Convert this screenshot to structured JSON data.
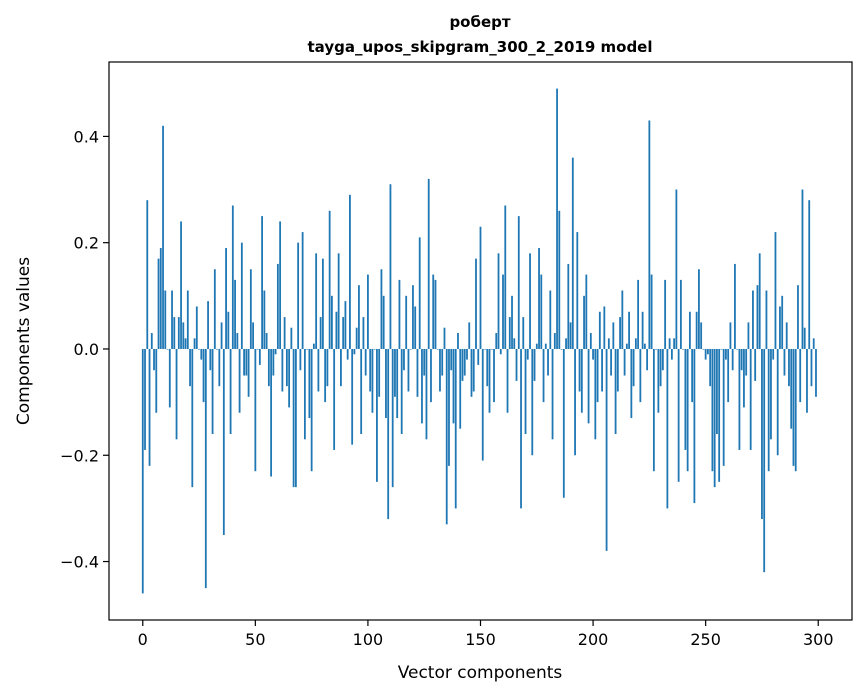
{
  "chart_data": {
    "type": "bar",
    "title_line1": "роберт",
    "title_line2": "tayga_upos_skipgram_300_2_2019 model",
    "xlabel": "Vector components",
    "ylabel": "Components values",
    "xlim": [
      -15,
      315
    ],
    "ylim": [
      -0.51,
      0.54
    ],
    "xticks": [
      0,
      50,
      100,
      150,
      200,
      250,
      300
    ],
    "xtick_labels": [
      "0",
      "50",
      "100",
      "150",
      "200",
      "250",
      "300"
    ],
    "yticks": [
      -0.4,
      -0.2,
      0.0,
      0.2,
      0.4
    ],
    "ytick_labels": [
      "−0.4",
      "−0.2",
      "0.0",
      "0.2",
      "0.4"
    ],
    "grid": false,
    "bar_color": "#1f77b4",
    "values": [
      -0.46,
      -0.19,
      0.28,
      -0.22,
      0.03,
      -0.04,
      -0.12,
      0.17,
      0.19,
      0.42,
      0.11,
      0.0,
      -0.11,
      0.11,
      0.06,
      -0.17,
      0.06,
      0.24,
      0.05,
      0.02,
      0.11,
      -0.07,
      -0.26,
      0.02,
      0.08,
      0.0,
      -0.02,
      -0.1,
      -0.45,
      0.09,
      -0.04,
      -0.16,
      0.15,
      0.0,
      -0.07,
      0.05,
      -0.35,
      0.19,
      0.07,
      -0.16,
      0.27,
      0.13,
      0.03,
      -0.12,
      0.2,
      -0.05,
      -0.05,
      -0.09,
      0.15,
      0.05,
      -0.23,
      0.0,
      -0.03,
      0.25,
      0.11,
      0.03,
      -0.07,
      -0.24,
      -0.05,
      -0.01,
      0.16,
      0.24,
      -0.08,
      0.06,
      -0.07,
      -0.11,
      0.04,
      -0.26,
      -0.26,
      0.2,
      -0.04,
      0.22,
      -0.17,
      0.0,
      -0.13,
      -0.23,
      0.01,
      0.18,
      -0.08,
      0.06,
      0.17,
      -0.1,
      -0.07,
      0.26,
      0.1,
      -0.19,
      0.07,
      0.18,
      -0.07,
      0.06,
      0.09,
      -0.02,
      0.29,
      -0.18,
      -0.01,
      0.04,
      0.12,
      -0.16,
      0.06,
      -0.05,
      0.14,
      -0.08,
      -0.12,
      0.0,
      -0.25,
      -0.09,
      0.15,
      0.1,
      -0.13,
      -0.32,
      0.31,
      -0.26,
      -0.09,
      -0.13,
      0.13,
      -0.16,
      -0.04,
      0.1,
      -0.08,
      0.0,
      0.12,
      0.08,
      -0.09,
      0.21,
      -0.14,
      -0.05,
      -0.17,
      0.32,
      -0.1,
      0.14,
      0.13,
      0.0,
      -0.08,
      -0.05,
      0.04,
      -0.33,
      -0.22,
      -0.04,
      -0.14,
      -0.3,
      0.03,
      -0.15,
      -0.06,
      -0.05,
      -0.02,
      0.05,
      -0.09,
      -0.08,
      0.17,
      -0.03,
      0.23,
      -0.21,
      0.0,
      -0.07,
      -0.12,
      0.0,
      -0.1,
      0.03,
      0.18,
      -0.01,
      0.14,
      0.27,
      -0.12,
      0.06,
      0.1,
      0.02,
      -0.06,
      0.25,
      -0.3,
      0.06,
      -0.16,
      -0.02,
      0.18,
      -0.2,
      -0.06,
      0.01,
      0.19,
      0.14,
      -0.1,
      0.01,
      -0.05,
      0.11,
      -0.17,
      0.03,
      0.49,
      0.26,
      0.0,
      -0.28,
      0.02,
      0.16,
      0.05,
      0.36,
      -0.2,
      0.22,
      -0.08,
      -0.12,
      0.1,
      0.14,
      -0.14,
      0.03,
      -0.02,
      -0.17,
      -0.1,
      0.07,
      -0.08,
      0.08,
      -0.38,
      0.02,
      -0.05,
      0.05,
      -0.16,
      -0.08,
      0.06,
      0.11,
      -0.05,
      0.01,
      0.07,
      -0.13,
      -0.07,
      0.02,
      0.13,
      -0.1,
      0.07,
      0.01,
      -0.04,
      0.43,
      0.14,
      -0.23,
      0.0,
      -0.12,
      -0.07,
      -0.04,
      0.13,
      -0.3,
      0.02,
      -0.02,
      0.02,
      0.3,
      -0.25,
      0.13,
      0.0,
      -0.19,
      -0.23,
      0.07,
      -0.1,
      -0.29,
      0.07,
      0.15,
      0.05,
      0.0,
      -0.02,
      -0.01,
      -0.07,
      -0.23,
      -0.26,
      -0.16,
      -0.25,
      0.0,
      -0.22,
      -0.02,
      -0.1,
      0.05,
      -0.04,
      0.16,
      0.0,
      -0.19,
      -0.04,
      -0.11,
      -0.05,
      0.05,
      -0.19,
      0.11,
      -0.06,
      0.12,
      0.18,
      -0.32,
      -0.42,
      0.11,
      -0.23,
      -0.17,
      -0.02,
      0.22,
      -0.2,
      0.08,
      0.1,
      -0.05,
      0.05,
      -0.07,
      -0.15,
      -0.22,
      -0.23,
      0.12,
      -0.1,
      0.3,
      0.04,
      -0.12,
      0.28,
      -0.07,
      0.02,
      -0.09
    ]
  }
}
